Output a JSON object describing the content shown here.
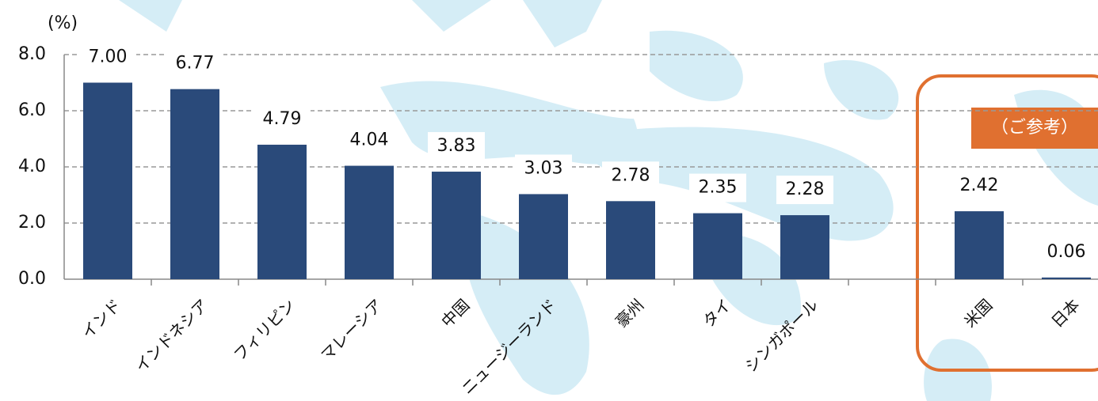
{
  "chart_data": {
    "type": "bar",
    "y_unit": "(%)",
    "annotation": "（ご参考）",
    "categories": [
      "インド",
      "インドネシア",
      "フィリピン",
      "マレーシア",
      "中国",
      "ニュージーランド",
      "豪州",
      "タイ",
      "シンガポール",
      null,
      "米国",
      "日本"
    ],
    "values": [
      7.0,
      6.77,
      4.79,
      4.04,
      3.83,
      3.03,
      2.78,
      2.35,
      2.28,
      null,
      2.42,
      0.06
    ],
    "value_labels": [
      "7.00",
      "6.77",
      "4.79",
      "4.04",
      "3.83",
      "3.03",
      "2.78",
      "2.35",
      "2.28",
      null,
      "2.42",
      "0.06"
    ],
    "color": "#2a4a7a",
    "ylim": [
      0,
      8
    ],
    "yticks": [
      {
        "value": 0,
        "label": "0.0"
      },
      {
        "value": 2,
        "label": "2.0"
      },
      {
        "value": 4,
        "label": "4.0"
      },
      {
        "value": 6,
        "label": "6.0"
      },
      {
        "value": 8,
        "label": "8.0"
      }
    ],
    "grid": true
  }
}
